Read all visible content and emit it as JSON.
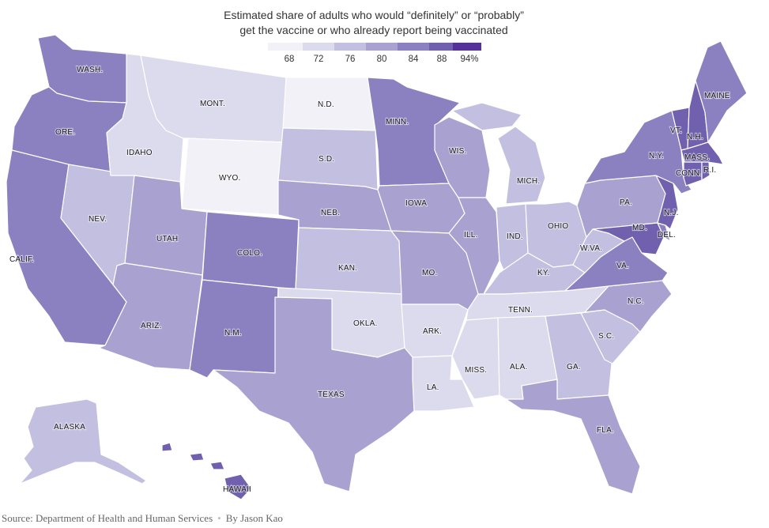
{
  "title_line1": "Estimated share of adults who would “definitely” or “probably”",
  "title_line2": "get the vaccine or who already report being vaccinated",
  "legend": {
    "ticks": [
      "68",
      "72",
      "76",
      "80",
      "84",
      "88",
      "94%"
    ],
    "colors": [
      "#f2f1f8",
      "#dcdaed",
      "#c3bfe0",
      "#a9a2d1",
      "#8c81c0",
      "#7060ae",
      "#55329a"
    ]
  },
  "states": [
    {
      "label": "WASH.",
      "share": 84
    },
    {
      "label": "ORE.",
      "share": 84
    },
    {
      "label": "CALIF.",
      "share": 86
    },
    {
      "label": "NEV.",
      "share": 79
    },
    {
      "label": "IDAHO",
      "share": 72
    },
    {
      "label": "MONT.",
      "share": 75
    },
    {
      "label": "WYO.",
      "share": 68
    },
    {
      "label": "UTAH",
      "share": 82
    },
    {
      "label": "ARIZ.",
      "share": 80
    },
    {
      "label": "COLO.",
      "share": 84
    },
    {
      "label": "N.M.",
      "share": 85
    },
    {
      "label": "N.D.",
      "share": 71
    },
    {
      "label": "S.D.",
      "share": 76
    },
    {
      "label": "NEB.",
      "share": 80
    },
    {
      "label": "KAN.",
      "share": 79
    },
    {
      "label": "OKLA.",
      "share": 75
    },
    {
      "label": "TEXAS",
      "share": 81
    },
    {
      "label": "MINN.",
      "share": 85
    },
    {
      "label": "IOWA",
      "share": 80
    },
    {
      "label": "MO.",
      "share": 80
    },
    {
      "label": "ARK.",
      "share": 75
    },
    {
      "label": "LA.",
      "share": 73
    },
    {
      "label": "WIS.",
      "share": 82
    },
    {
      "label": "ILL.",
      "share": 82
    },
    {
      "label": "MICH.",
      "share": 79
    },
    {
      "label": "IND.",
      "share": 77
    },
    {
      "label": "OHIO",
      "share": 76
    },
    {
      "label": "KY.",
      "share": 78
    },
    {
      "label": "TENN.",
      "share": 74
    },
    {
      "label": "MISS.",
      "share": 72
    },
    {
      "label": "ALA.",
      "share": 74
    },
    {
      "label": "GA.",
      "share": 77
    },
    {
      "label": "FLA.",
      "share": 81
    },
    {
      "label": "S.C.",
      "share": 79
    },
    {
      "label": "N.C.",
      "share": 81
    },
    {
      "label": "VA.",
      "share": 84
    },
    {
      "label": "W.VA.",
      "share": 76
    },
    {
      "label": "PA.",
      "share": 83
    },
    {
      "label": "N.Y.",
      "share": 86
    },
    {
      "label": "MAINE",
      "share": 86
    },
    {
      "label": "VT.",
      "share": 92
    },
    {
      "label": "N.H.",
      "share": 88
    },
    {
      "label": "MASS.",
      "share": 92
    },
    {
      "label": "R.I.",
      "share": 91
    },
    {
      "label": "CONN.",
      "share": 90
    },
    {
      "label": "N.J.",
      "share": 89
    },
    {
      "label": "DEL.",
      "share": 87
    },
    {
      "label": "MD.",
      "share": 88
    },
    {
      "label": "ALASKA",
      "share": 76
    },
    {
      "label": "HAWAII",
      "share": 90
    }
  ],
  "footer": {
    "source": "Source: Department of Health and Human Services",
    "separator": "•",
    "byline": "By Jason Kao"
  }
}
